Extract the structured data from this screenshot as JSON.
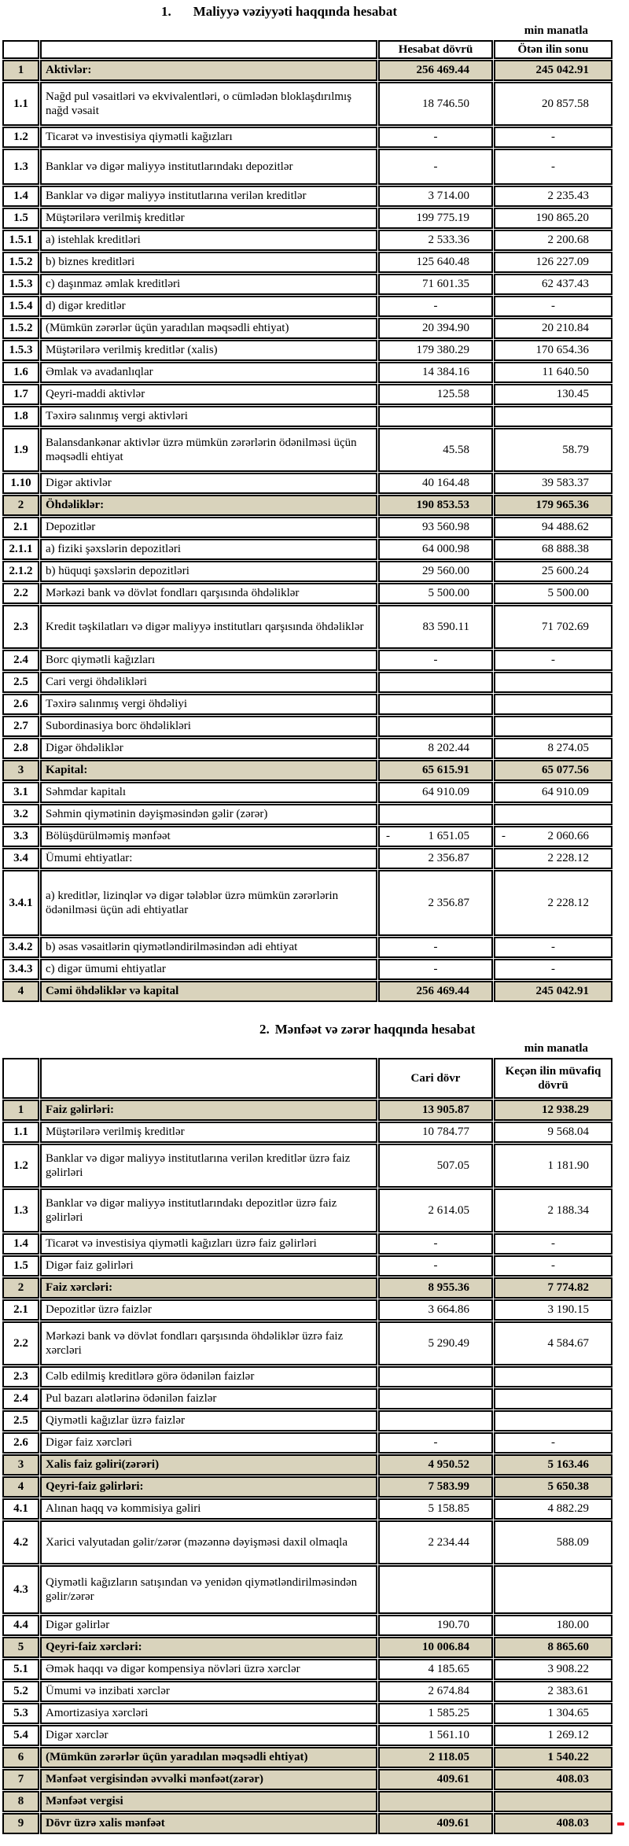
{
  "colors": {
    "highlight_bg": "#d9d3bc",
    "border": "#000000",
    "red_mark": "#ee1c25",
    "page_bg": "#ffffff"
  },
  "red_mark": {
    "present": true
  },
  "tables": [
    {
      "title_no": "1.",
      "title_text": "Maliyyə vəziyyəti haqqında hesabat",
      "unit_label": "min manatla",
      "col_headers": [
        "Hesabat dövrü",
        "Ötən ilin sonu"
      ],
      "rows": [
        {
          "num": "1",
          "label": "Aktivlər:",
          "v1": "256 469.44",
          "v2": "245 042.91",
          "hl": true
        },
        {
          "num": "1.1",
          "label": "Nağd pul vəsaitləri və  ekvivalentləri, o cümlədən bloklaşdırılmış nağd vəsait",
          "v1": "18 746.50",
          "v2": "20 857.58"
        },
        {
          "num": "1.2",
          "label": "Ticarət və investisiya qiymətli kağızları",
          "v1": "-",
          "v2": "-"
        },
        {
          "num": "1.3",
          "label": "Banklar və digər maliyyə institutlarındakı depozitlər",
          "v1": "-",
          "v2": "-"
        },
        {
          "num": "1.4",
          "label": "Banklar və digər maliyyə institutlarına verilən kreditlər",
          "v1": "3 714.00",
          "v2": "2 235.43"
        },
        {
          "num": "1.5",
          "label": "Müştərilərə verilmiş kreditlər",
          "v1": "199 775.19",
          "v2": "190 865.20"
        },
        {
          "num": "1.5.1",
          "label": "a) istehlak kreditləri",
          "v1": "2 533.36",
          "v2": "2 200.68"
        },
        {
          "num": "1.5.2",
          "label": "b) biznes kreditləri",
          "v1": "125 640.48",
          "v2": "126 227.09"
        },
        {
          "num": "1.5.3",
          "label": "c) daşınmaz əmlak kreditləri",
          "v1": "71 601.35",
          "v2": "62 437.43"
        },
        {
          "num": "1.5.4",
          "label": "d) digər kreditlər",
          "v1": "-",
          "v2": "-"
        },
        {
          "num": "1.5.2",
          "label": "(Mümkün zərərlər üçün yaradılan məqsədli ehtiyat)",
          "v1": "20 394.90",
          "v2": "20 210.84"
        },
        {
          "num": "1.5.3",
          "label": "Müştərilərə verilmiş kreditlər (xalis)",
          "v1": "179 380.29",
          "v2": "170 654.36"
        },
        {
          "num": "1.6",
          "label": "Əmlak və avadanlıqlar",
          "v1": "14 384.16",
          "v2": "11 640.50"
        },
        {
          "num": "1.7",
          "label": "Qeyri-maddi aktivlər",
          "v1": "125.58",
          "v2": "130.45"
        },
        {
          "num": "1.8",
          "label": "Təxirə salınmış vergi aktivləri",
          "v1": "",
          "v2": ""
        },
        {
          "num": "1.9",
          "label": "Balansdankənar aktivlər üzrə mümkün zərərlərin ödənilməsi üçün məqsədli ehtiyat",
          "v1": "45.58",
          "v2": "58.79"
        },
        {
          "num": "1.10",
          "label": "Digər aktivlər",
          "v1": "40 164.48",
          "v2": "39 583.37"
        },
        {
          "num": "2",
          "label": "Öhdəliklər:",
          "v1": "190 853.53",
          "v2": "179 965.36",
          "hl": true
        },
        {
          "num": "2.1",
          "label": "Depozitlər",
          "v1": "93 560.98",
          "v2": "94 488.62"
        },
        {
          "num": "2.1.1",
          "label": "a) fiziki şəxslərin depozitləri",
          "v1": "64 000.98",
          "v2": "68 888.38"
        },
        {
          "num": "2.1.2",
          "label": "b) hüquqi şəxslərin depozitləri",
          "v1": "29 560.00",
          "v2": "25 600.24"
        },
        {
          "num": "2.2",
          "label": "Mərkəzi bank və dövlət fondları qarşısında öhdəliklər",
          "v1": "5 500.00",
          "v2": "5 500.00"
        },
        {
          "num": "2.3",
          "label": "Kredit təşkilatları və digər maliyyə institutları qarşısında öhdəliklər",
          "v1": "83 590.11",
          "v2": "71 702.69"
        },
        {
          "num": "2.4",
          "label": "Borc qiymətli kağızları",
          "v1": "-",
          "v2": "-"
        },
        {
          "num": "2.5",
          "label": "Cari vergi öhdəlikləri",
          "v1": "",
          "v2": ""
        },
        {
          "num": "2.6",
          "label": "Təxirə salınmış vergi öhdəliyi",
          "v1": "",
          "v2": ""
        },
        {
          "num": "2.7",
          "label": "Subordinasiya borc öhdəlikləri",
          "v1": "",
          "v2": ""
        },
        {
          "num": "2.8",
          "label": "Digər öhdəliklər",
          "v1": "8 202.44",
          "v2": "8 274.05"
        },
        {
          "num": "3",
          "label": "Kapital:",
          "v1": "65 615.91",
          "v2": "65 077.56",
          "hl": true
        },
        {
          "num": "3.1",
          "label": "Səhmdar kapitalı",
          "v1": "64 910.09",
          "v2": "64 910.09"
        },
        {
          "num": "3.2",
          "label": "Səhmin qiymətinin dəyişməsindən gəlir (zərər)",
          "v1": "",
          "v2": ""
        },
        {
          "num": "3.3",
          "label": "Bölüşdürülməmiş mənfəət",
          "v1": "-1 651.05",
          "v2": "-2 060.66"
        },
        {
          "num": "3.4",
          "label": "Ümumi ehtiyatlar:",
          "v1": "2 356.87",
          "v2": "2 228.12"
        },
        {
          "num": "3.4.1",
          "label": "a) kreditlər, lizinqlər və digər tələblər üzrə mümkün zərərlərin ödənilməsi üçün adi ehtiyatlar",
          "v1": "2 356.87",
          "v2": "2 228.12"
        },
        {
          "num": "3.4.2",
          "label": "b) əsas vəsaitlərin qiymətləndirilməsindən adi ehtiyat",
          "v1": "-",
          "v2": "-"
        },
        {
          "num": "3.4.3",
          "label": "c) digər ümumi ehtiyatlar",
          "v1": "-",
          "v2": "-"
        },
        {
          "num": "4",
          "label": "Cəmi öhdəliklər və kapital",
          "v1": "256 469.44",
          "v2": "245 042.91",
          "hl": true
        }
      ]
    },
    {
      "title_no": "2.",
      "title_text": "Mənfəət və zərər haqqında hesabat",
      "unit_label": "min manatla",
      "col_headers": [
        "Cari dövr",
        "Keçən ilin müvafiq dövrü"
      ],
      "rows": [
        {
          "num": "1",
          "label": "Faiz gəlirləri:",
          "v1": "13 905.87",
          "v2": "12 938.29",
          "hl": true
        },
        {
          "num": "1.1",
          "label": "Müştərilərə verilmiş kreditlər",
          "v1": "10 784.77",
          "v2": "9 568.04"
        },
        {
          "num": "1.2",
          "label": "Banklar və digər maliyyə institutlarına verilən kreditlər üzrə faiz gəlirləri",
          "v1": "507.05",
          "v2": "1 181.90"
        },
        {
          "num": "1.3",
          "label": "Banklar və digər maliyyə institutlarındakı depozitlər üzrə faiz gəlirləri",
          "v1": "2 614.05",
          "v2": "2 188.34"
        },
        {
          "num": "1.4",
          "label": "Ticarət və investisiya qiymətli kağızları üzrə faiz gəlirləri",
          "v1": "-",
          "v2": "-"
        },
        {
          "num": "1.5",
          "label": "Digər faiz gəlirləri",
          "v1": "-",
          "v2": "-"
        },
        {
          "num": "2",
          "label": "Faiz xərcləri:",
          "v1": "8 955.36",
          "v2": "7 774.82",
          "hl": true
        },
        {
          "num": "2.1",
          "label": "Depozitlər üzrə faizlər",
          "v1": "3 664.86",
          "v2": "3 190.15"
        },
        {
          "num": "2.2",
          "label": "Mərkəzi bank və dövlət fondları qarşısında öhdəliklər üzrə faiz xərcləri",
          "v1": "5 290.49",
          "v2": "4 584.67"
        },
        {
          "num": "2.3",
          "label": "Cəlb edilmiş kreditlərə görə ödənilən faizlər",
          "v1": "",
          "v2": ""
        },
        {
          "num": "2.4",
          "label": "Pul bazarı alətlərinə ödənilən faizlər",
          "v1": "",
          "v2": ""
        },
        {
          "num": "2.5",
          "label": "Qiymətli kağızlar üzrə faizlər",
          "v1": "",
          "v2": ""
        },
        {
          "num": "2.6",
          "label": "Digər faiz xərcləri",
          "v1": "-",
          "v2": "-"
        },
        {
          "num": "3",
          "label": "Xalis faiz gəliri(zərəri)",
          "v1": "4 950.52",
          "v2": "5 163.46",
          "hl": true
        },
        {
          "num": "4",
          "label": "Qeyri-faiz gəlirləri:",
          "v1": "7 583.99",
          "v2": "5 650.38",
          "hl": true
        },
        {
          "num": "4.1",
          "label": "Alınan haqq və kommisiya gəliri",
          "v1": "5 158.85",
          "v2": "4 882.29"
        },
        {
          "num": "4.2",
          "label": "Xarici valyutadan gəlir/zərər (məzənnə dəyişməsi daxil olmaqla",
          "v1": "2 234.44",
          "v2": "588.09"
        },
        {
          "num": "4.3",
          "label": "Qiymətli kağızların satışından və yenidən qiymətləndirilməsindən gəlir/zərər",
          "v1": "",
          "v2": ""
        },
        {
          "num": "4.4",
          "label": "Digər gəlirlər",
          "v1": "190.70",
          "v2": "180.00"
        },
        {
          "num": "5",
          "label": "Qeyri-faiz xərcləri:",
          "v1": "10 006.84",
          "v2": "8 865.60",
          "hl": true
        },
        {
          "num": "5.1",
          "label": "Əmək haqqı və digər kompensiya növləri üzrə xərclər",
          "v1": "4 185.65",
          "v2": "3 908.22"
        },
        {
          "num": "5.2",
          "label": "Ümumi və inzibati xərclər",
          "v1": "2 674.84",
          "v2": "2 383.61"
        },
        {
          "num": "5.3",
          "label": "Amortizasiya xərcləri",
          "v1": "1 585.25",
          "v2": "1 304.65"
        },
        {
          "num": "5.4",
          "label": "Digər xərclər",
          "v1": "1 561.10",
          "v2": "1 269.12"
        },
        {
          "num": "6",
          "label": "(Mümkün zərərlər üçün yaradılan məqsədli ehtiyat)",
          "v1": "2 118.05",
          "v2": "1 540.22",
          "hl": true
        },
        {
          "num": "7",
          "label": "Mənfəət vergisindən əvvəlki mənfəət(zərər)",
          "v1": "409.61",
          "v2": "408.03",
          "hl": true
        },
        {
          "num": "8",
          "label": "Mənfəət vergisi",
          "v1": "",
          "v2": "",
          "hl": true
        },
        {
          "num": "9",
          "label": "Dövr üzrə xalis mənfəət",
          "v1": "409.61",
          "v2": "408.03",
          "hl": true
        }
      ]
    }
  ]
}
